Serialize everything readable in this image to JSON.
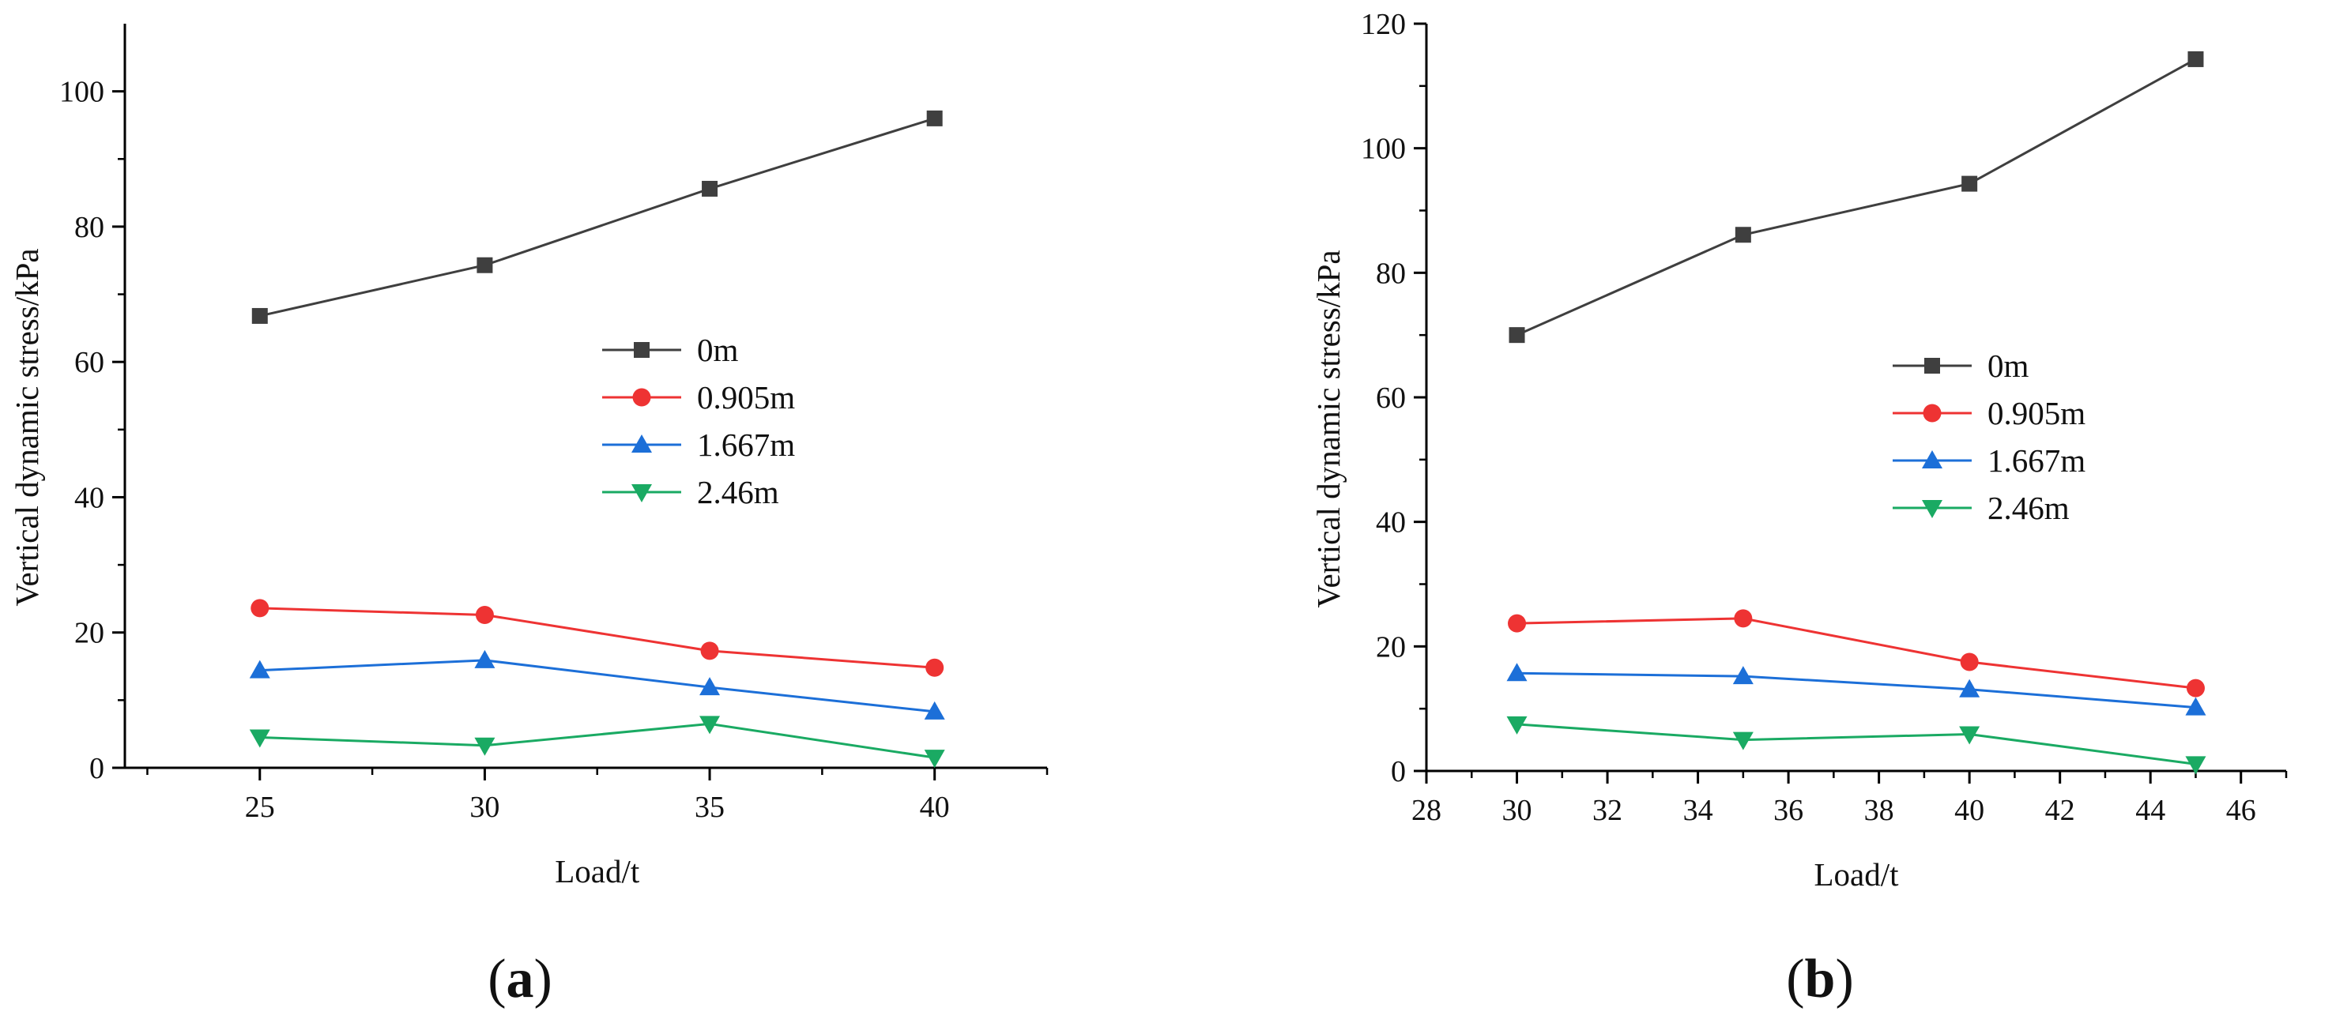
{
  "chart_data": [
    {
      "type": "line",
      "panel_label": "a",
      "xlabel": "Load/t",
      "ylabel": "Vertical dynamic stress/kPa",
      "xlim": [
        22,
        42.5
      ],
      "ylim": [
        0,
        110
      ],
      "x_ticks": [
        25,
        30,
        35,
        40
      ],
      "y_ticks": [
        0,
        20,
        40,
        60,
        80,
        100
      ],
      "legend_position": "center",
      "grid": false,
      "x": [
        25,
        30,
        35,
        40
      ],
      "series": [
        {
          "name": "0m",
          "color": "#3f3f3f",
          "marker": "square",
          "values": [
            66.8,
            74.3,
            85.6,
            96.0
          ]
        },
        {
          "name": "0.905m",
          "color": "#ee3333",
          "marker": "circle",
          "values": [
            23.6,
            22.6,
            17.3,
            14.8
          ]
        },
        {
          "name": "1.667m",
          "color": "#1c6fd8",
          "marker": "triangle-up",
          "values": [
            14.4,
            15.9,
            11.9,
            8.3
          ]
        },
        {
          "name": "2.46m",
          "color": "#1aaa63",
          "marker": "triangle-down",
          "values": [
            4.5,
            3.3,
            6.5,
            1.5
          ]
        }
      ]
    },
    {
      "type": "line",
      "panel_label": "b",
      "xlabel": "Load/t",
      "ylabel": "Vertical dynamic stress/kPa",
      "xlim": [
        28,
        47
      ],
      "ylim": [
        0,
        120
      ],
      "x_ticks": [
        28,
        30,
        32,
        34,
        36,
        38,
        40,
        42,
        44,
        46
      ],
      "y_ticks": [
        0,
        20,
        40,
        60,
        80,
        100,
        120
      ],
      "legend_position": "center",
      "grid": false,
      "x": [
        30,
        35,
        40,
        45
      ],
      "series": [
        {
          "name": "0m",
          "color": "#3f3f3f",
          "marker": "square",
          "values": [
            70.0,
            86.1,
            94.3,
            114.3
          ]
        },
        {
          "name": "0.905m",
          "color": "#ee3333",
          "marker": "circle",
          "values": [
            23.7,
            24.5,
            17.5,
            13.3
          ]
        },
        {
          "name": "1.667m",
          "color": "#1c6fd8",
          "marker": "triangle-up",
          "values": [
            15.7,
            15.2,
            13.1,
            10.2
          ]
        },
        {
          "name": "2.46m",
          "color": "#1aaa63",
          "marker": "triangle-down",
          "values": [
            7.5,
            5.0,
            5.9,
            1.1
          ]
        }
      ]
    }
  ]
}
